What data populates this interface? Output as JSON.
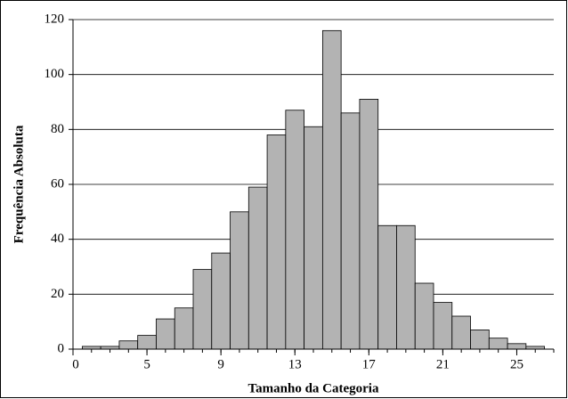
{
  "chart_data": {
    "type": "histogram",
    "xlabel": "Tamanho da Categoria",
    "ylabel": "Frequência Absoluta",
    "bins": [
      0.5,
      1.5,
      2.5,
      3.5,
      4.5,
      5.5,
      6.5,
      7.5,
      8.5,
      9.5,
      10.5,
      11.5,
      12.5,
      13.5,
      14.5,
      15.5,
      16.5,
      17.5,
      18.5,
      19.5,
      20.5,
      21.5,
      22.5,
      23.5,
      24.5,
      25.5
    ],
    "values": [
      1,
      1,
      3,
      5,
      11,
      15,
      29,
      35,
      50,
      59,
      78,
      87,
      81,
      116,
      86,
      91,
      45,
      45,
      24,
      17,
      12,
      7,
      4,
      2,
      1
    ],
    "color": "#b3b3b3",
    "xlim": [
      0,
      26
    ],
    "xticks": [
      0,
      {
        "value": 4,
        "label": "5"
      },
      {
        "value": 8,
        "label": "9"
      },
      {
        "value": 12,
        "label": "13"
      },
      {
        "value": 16,
        "label": "17"
      },
      {
        "value": 20,
        "label": "21"
      },
      {
        "value": 24,
        "label": "25"
      }
    ],
    "ylim": [
      0,
      120
    ],
    "yticks": [
      0,
      20,
      40,
      60,
      80,
      100,
      120
    ],
    "grid": true
  }
}
